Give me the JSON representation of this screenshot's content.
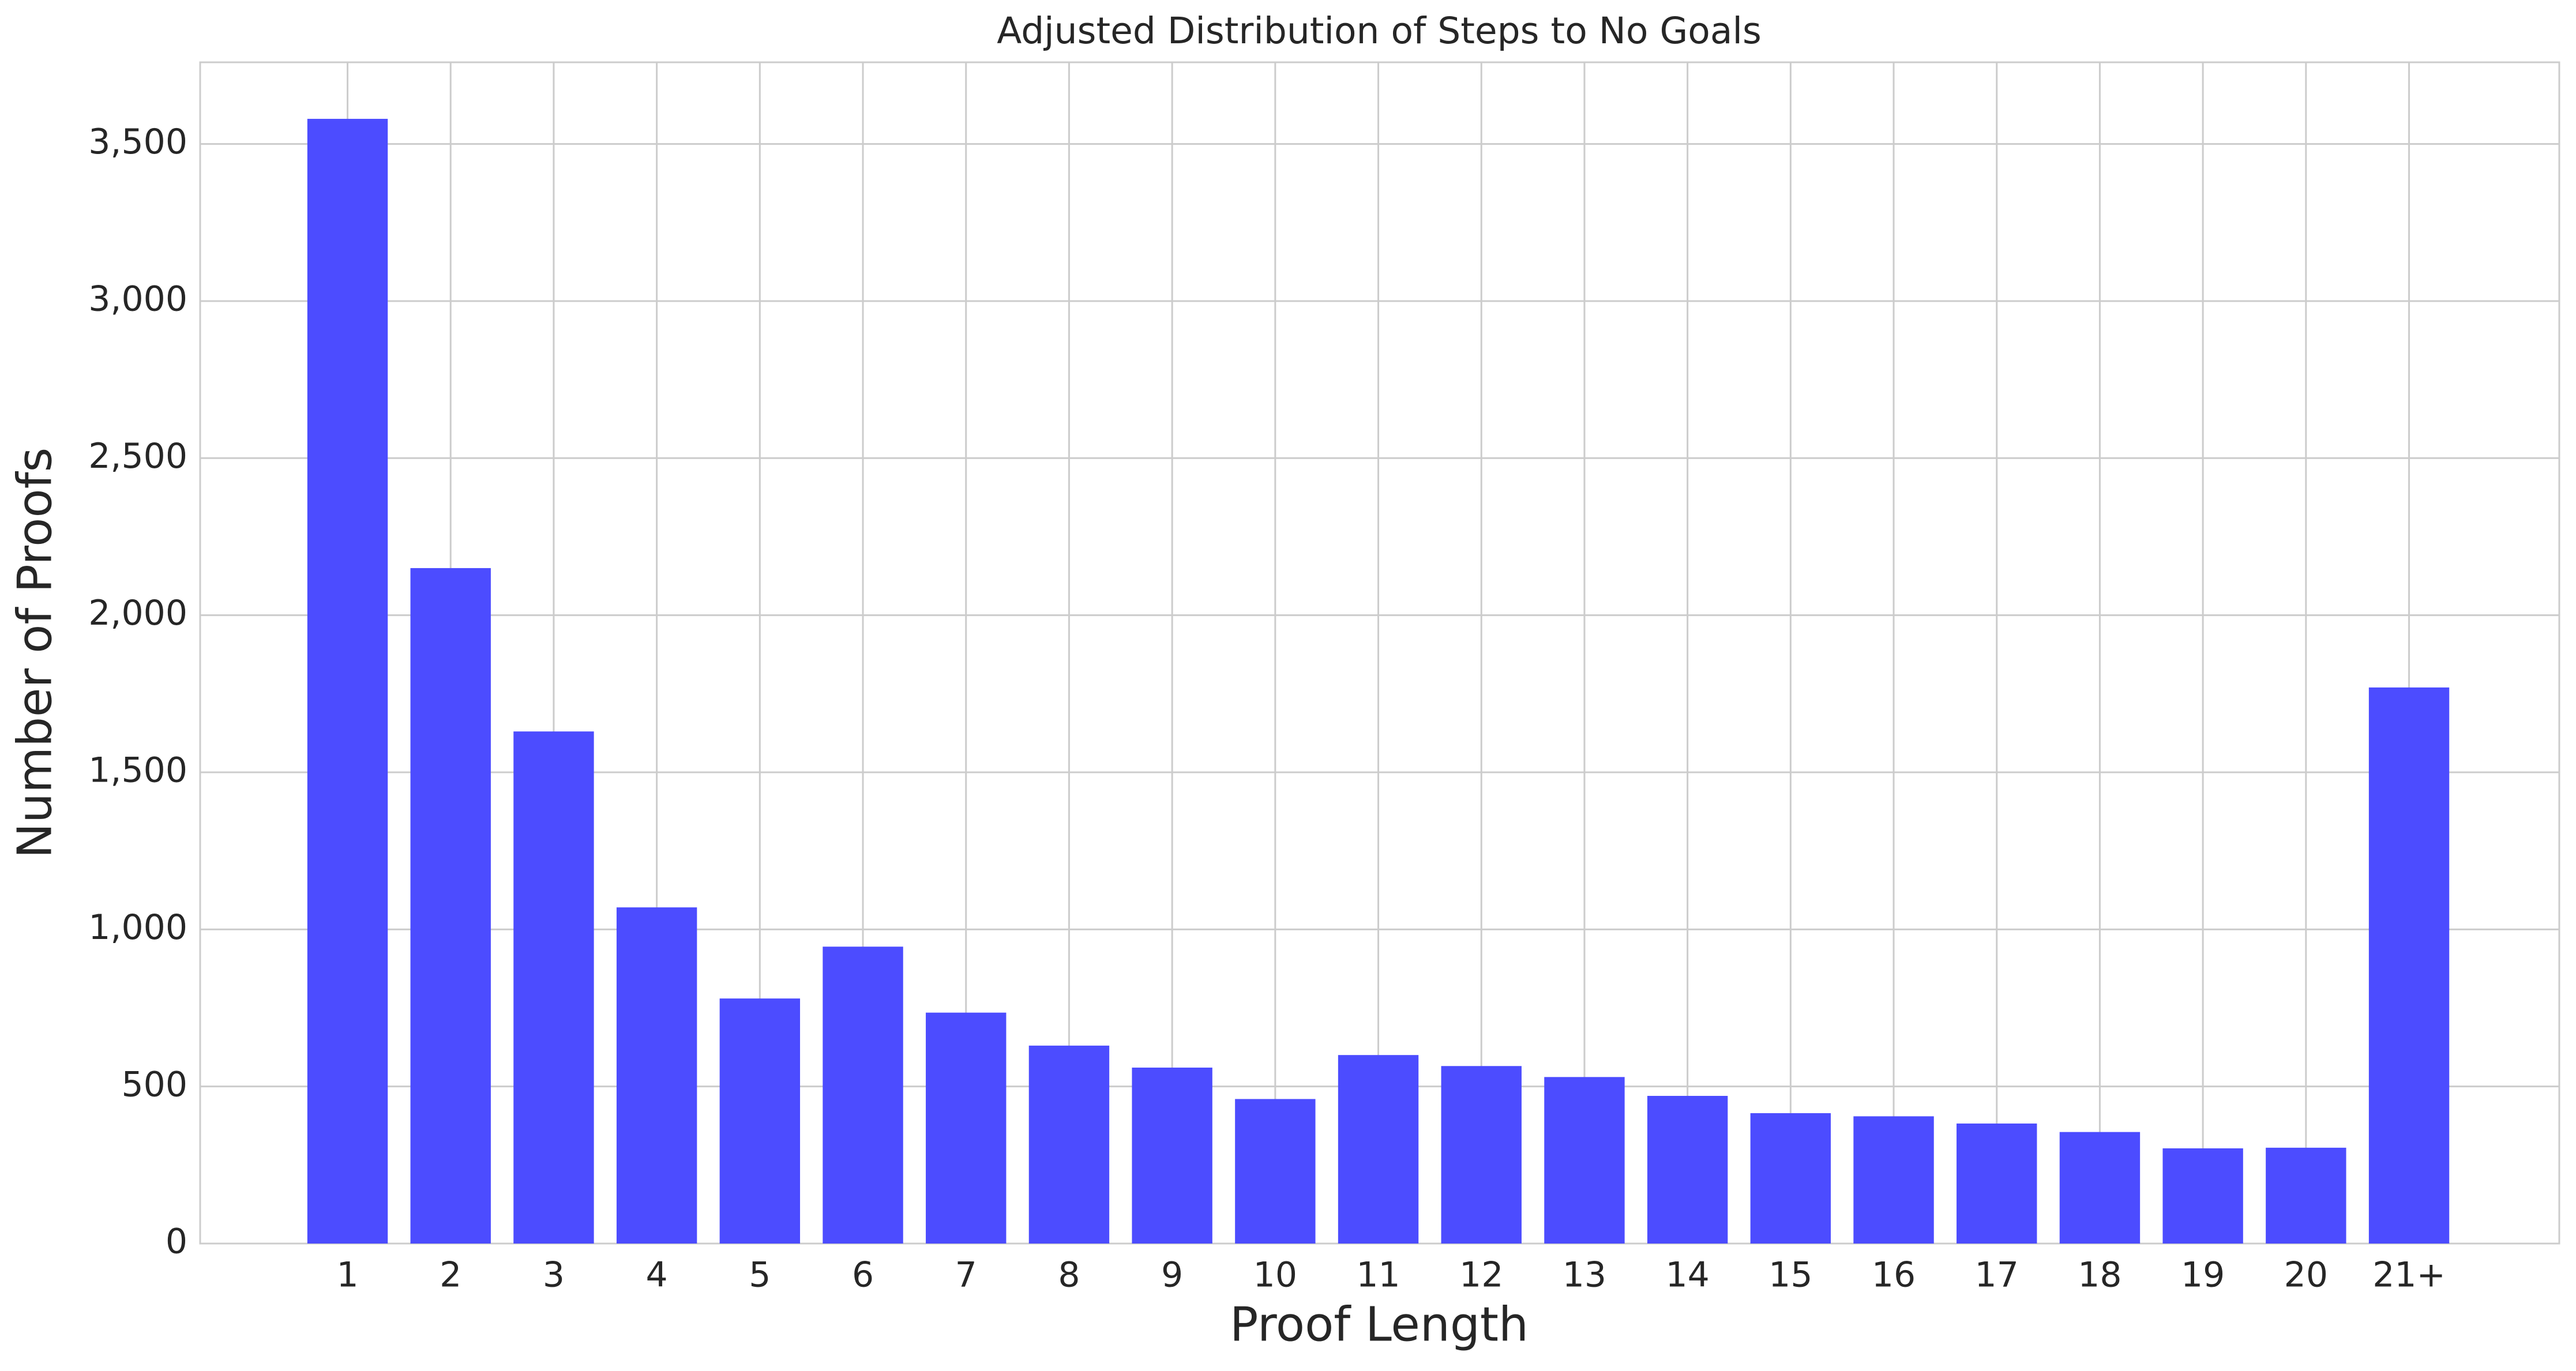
{
  "chart_data": {
    "type": "bar",
    "title": "Adjusted Distribution of Steps to No Goals",
    "x_label": "Proof Length",
    "y_label": "Number of Proofs",
    "categories": [
      "1",
      "2",
      "3",
      "4",
      "5",
      "6",
      "7",
      "8",
      "9",
      "10",
      "11",
      "12",
      "13",
      "14",
      "15",
      "16",
      "17",
      "18",
      "19",
      "20",
      "21+"
    ],
    "values": [
      3580,
      2150,
      1630,
      1070,
      780,
      945,
      735,
      630,
      560,
      460,
      600,
      565,
      530,
      470,
      415,
      405,
      382,
      355,
      303,
      305,
      1770
    ],
    "color": "#4c4cff",
    "ylim": [
      0,
      3760
    ],
    "yticks": [
      0,
      500,
      {
        "value": 1000,
        "label": "1,000"
      },
      {
        "value": 1500,
        "label": "1,500"
      },
      {
        "value": 2000,
        "label": "2,000"
      },
      {
        "value": 2500,
        "label": "2,500"
      },
      {
        "value": 3000,
        "label": "3,000"
      },
      {
        "value": 3500,
        "label": "3,500"
      }
    ],
    "grid": true
  }
}
